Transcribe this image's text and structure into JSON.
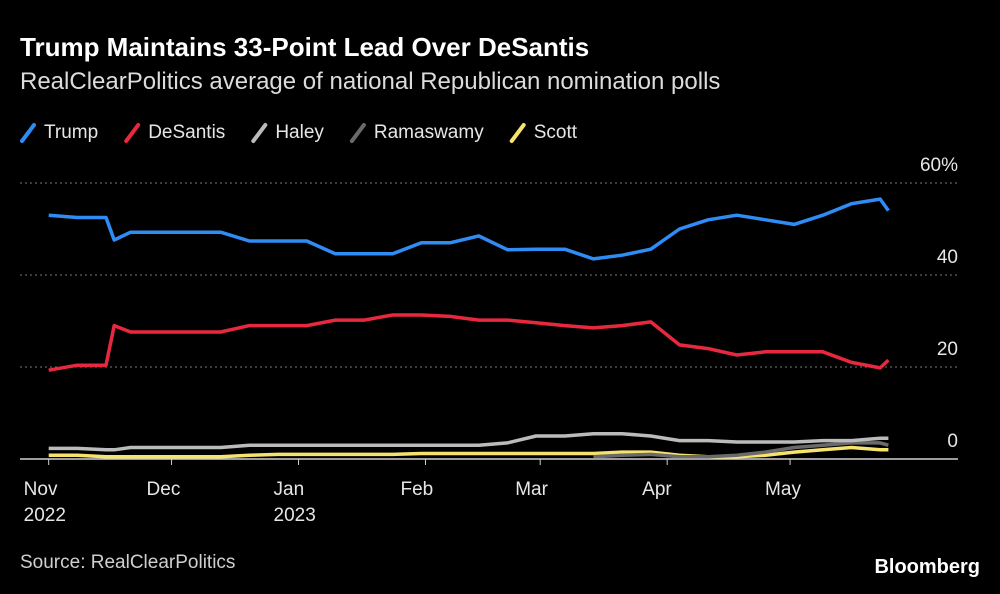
{
  "chart_data": {
    "type": "line",
    "title": "Trump Maintains 33-Point Lead Over DeSantis",
    "subtitle": "RealClearPolitics average of national Republican nomination polls",
    "source": "Source: RealClearPolitics",
    "brand": "Bloomberg",
    "x": [
      "2022-11-01",
      "2022-11-08",
      "2022-11-15",
      "2022-11-17",
      "2022-11-21",
      "2022-11-29",
      "2022-12-06",
      "2022-12-13",
      "2022-12-20",
      "2022-12-27",
      "2023-01-03",
      "2023-01-10",
      "2023-01-17",
      "2023-01-24",
      "2023-01-31",
      "2023-02-07",
      "2023-02-14",
      "2023-02-21",
      "2023-02-28",
      "2023-03-07",
      "2023-03-14",
      "2023-03-21",
      "2023-03-28",
      "2023-04-04",
      "2023-04-11",
      "2023-04-18",
      "2023-04-25",
      "2023-05-02",
      "2023-05-09",
      "2023-05-16",
      "2023-05-23",
      "2023-05-25"
    ],
    "series": [
      {
        "name": "Trump",
        "color": "#2f8cf5",
        "values": [
          53,
          52.5,
          52.5,
          47.6,
          49.3,
          49.3,
          49.3,
          49.3,
          47.4,
          47.4,
          47.4,
          44.6,
          44.6,
          44.6,
          47,
          47,
          48.5,
          45.5,
          45.6,
          45.6,
          43.5,
          44.3,
          45.6,
          50,
          52,
          53,
          52,
          51,
          53,
          55.5,
          56.5,
          54
        ]
      },
      {
        "name": "DeSantis",
        "color": "#e8283f",
        "values": [
          19.3,
          20.4,
          20.4,
          29,
          27.6,
          27.6,
          27.6,
          27.6,
          29,
          29,
          29,
          30.2,
          30.2,
          31.3,
          31.3,
          31,
          30.2,
          30.2,
          29.6,
          29,
          28.5,
          29,
          29.8,
          24.8,
          24,
          22.6,
          23.3,
          23.3,
          23.3,
          21,
          19.8,
          21.5
        ]
      },
      {
        "name": "Haley",
        "color": "#bbbbbb",
        "values": [
          2.3,
          2.3,
          2,
          2,
          2.5,
          2.5,
          2.5,
          2.5,
          3,
          3,
          3,
          3,
          3,
          3,
          3,
          3,
          3,
          3.5,
          5,
          5,
          5.5,
          5.5,
          5,
          4,
          4,
          3.7,
          3.7,
          3.7,
          4,
          4,
          4.5,
          4.5
        ]
      },
      {
        "name": "Ramaswamy",
        "color": "#6a6a6a",
        "values": [
          null,
          null,
          null,
          null,
          null,
          null,
          null,
          null,
          null,
          null,
          null,
          null,
          null,
          null,
          null,
          null,
          null,
          null,
          null,
          null,
          0.5,
          0.8,
          1,
          0.5,
          0.5,
          0.8,
          1.5,
          2.5,
          3,
          3.5,
          3.5,
          3
        ]
      },
      {
        "name": "Scott",
        "color": "#f5e36e",
        "values": [
          0.8,
          0.8,
          0.5,
          0.5,
          0.5,
          0.5,
          0.5,
          0.5,
          0.8,
          1,
          1,
          1,
          1,
          1,
          1.2,
          1.2,
          1.2,
          1.2,
          1.2,
          1.2,
          1.2,
          1.5,
          1.5,
          0.8,
          0.5,
          0.5,
          0.8,
          1.5,
          2,
          2.5,
          2,
          2
        ]
      }
    ],
    "xlim": [
      "2022-10-25",
      "2023-06-11"
    ],
    "xticks": [
      {
        "value": "2022-11-01",
        "label": "Nov\n2022"
      },
      {
        "value": "2022-12-01",
        "label": "Dec"
      },
      {
        "value": "2023-01-01",
        "label": "Jan\n2023"
      },
      {
        "value": "2023-02-01",
        "label": "Feb"
      },
      {
        "value": "2023-03-01",
        "label": "Mar"
      },
      {
        "value": "2023-04-01",
        "label": "Apr"
      },
      {
        "value": "2023-05-01",
        "label": "May"
      }
    ],
    "ylim": [
      0,
      60
    ],
    "yticks": [
      0,
      20,
      40,
      {
        "value": 60,
        "label": "60%"
      }
    ],
    "grid": true
  }
}
